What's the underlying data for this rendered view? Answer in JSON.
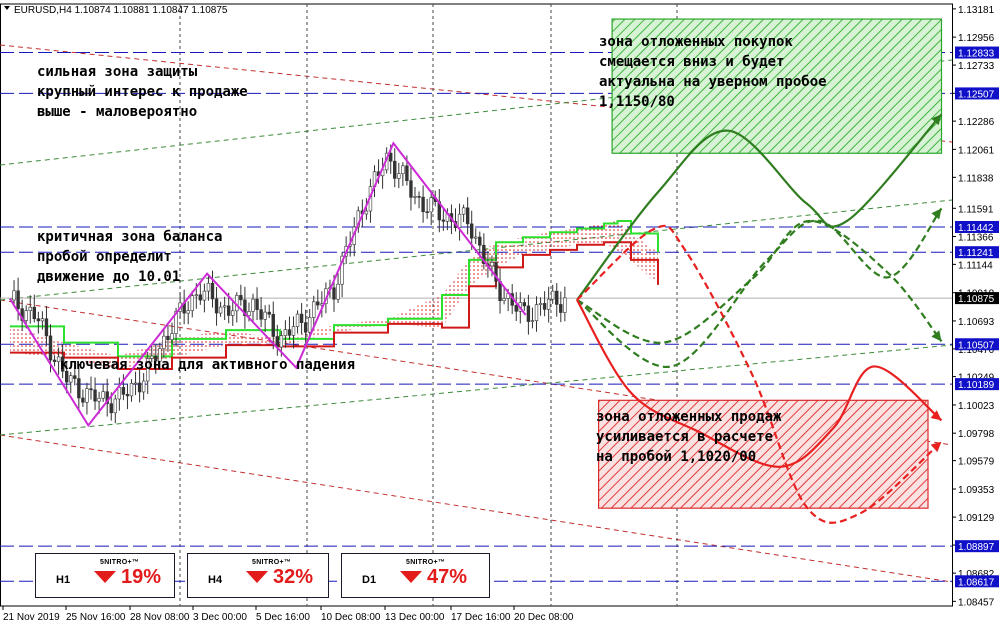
{
  "header": {
    "symbol_line": "EURUSD,H4  1.10874 1.10881 1.10847 1.10875"
  },
  "chart_data": {
    "type": "line",
    "symbol": "EURUSD",
    "timeframe": "H4",
    "ohlc": {
      "open": 1.10874,
      "high": 1.10881,
      "low": 1.10847,
      "close": 1.10875
    },
    "ylim": [
      1.0842,
      1.1322
    ],
    "price_axis_ticks": [
      "1.13181",
      "1.12956",
      "1.12733",
      "1.12508",
      "1.12286",
      "1.12061",
      "1.11838",
      "1.11591",
      "1.11366",
      "1.11144",
      "1.10918",
      "1.10693",
      "1.10470",
      "1.10249",
      "1.10023",
      "1.09798",
      "1.09579",
      "1.09353",
      "1.09129",
      "1.08906",
      "1.08682",
      "1.08457"
    ],
    "time_axis_labels": [
      "21 Nov 2019",
      "25 Nov 16:00",
      "28 Nov 08:00",
      "3 Dec 00:00",
      "5 Dec 16:00",
      "10 Dec 08:00",
      "13 Dec 00:00",
      "17 Dec 16:00",
      "20 Dec 08:00"
    ],
    "level_labels": [
      {
        "label": "1.12833",
        "value": 1.12833,
        "color": "#1010c8"
      },
      {
        "label": "1.12507",
        "value": 1.12507,
        "color": "#1010c8"
      },
      {
        "label": "1.11442",
        "value": 1.11442,
        "color": "#1010c8"
      },
      {
        "label": "1.11241",
        "value": 1.11241,
        "color": "#1010c8"
      },
      {
        "label": "1.10875",
        "value": 1.10875,
        "color": "#000000"
      },
      {
        "label": "1.10507",
        "value": 1.10507,
        "color": "#1010c8"
      },
      {
        "label": "1.10189",
        "value": 1.10189,
        "color": "#1010c8"
      },
      {
        "label": "1.08897",
        "value": 1.08897,
        "color": "#1010c8"
      },
      {
        "label": "1.08617",
        "value": 1.08617,
        "color": "#1010c8"
      }
    ],
    "current_price": 1.10875,
    "zigzag": [
      [
        0,
        1.1087
      ],
      [
        2.9,
        1.0986
      ],
      [
        7.3,
        1.1107
      ],
      [
        10.6,
        1.1032
      ],
      [
        14.2,
        1.1211
      ],
      [
        19.1,
        1.1074
      ]
    ],
    "price_path": [
      [
        0,
        1.1086
      ],
      [
        1,
        1.1072
      ],
      [
        2,
        1.1025
      ],
      [
        3,
        1.1008
      ],
      [
        4,
        1.1006
      ],
      [
        5,
        1.1026
      ],
      [
        6,
        1.1066
      ],
      [
        7,
        1.1094
      ],
      [
        8,
        1.1078
      ],
      [
        9,
        1.1083
      ],
      [
        10,
        1.1055
      ],
      [
        11,
        1.1072
      ],
      [
        12,
        1.1096
      ],
      [
        13,
        1.1158
      ],
      [
        14,
        1.1201
      ],
      [
        15,
        1.1168
      ],
      [
        16,
        1.1153
      ],
      [
        17,
        1.1148
      ],
      [
        18,
        1.1098
      ],
      [
        19,
        1.1074
      ],
      [
        20,
        1.1084
      ],
      [
        20.6,
        1.1088
      ]
    ],
    "cloud_top": [
      [
        0,
        1.1065
      ],
      [
        2,
        1.1052
      ],
      [
        4,
        1.1041
      ],
      [
        6,
        1.1055
      ],
      [
        8,
        1.1062
      ],
      [
        10,
        1.1055
      ],
      [
        12,
        1.1066
      ],
      [
        14,
        1.1071
      ],
      [
        16,
        1.109
      ],
      [
        17,
        1.1118
      ],
      [
        18,
        1.1132
      ],
      [
        19,
        1.1136
      ],
      [
        20,
        1.114
      ],
      [
        21,
        1.1143
      ],
      [
        22,
        1.1147
      ],
      [
        22.5,
        1.1149
      ],
      [
        23,
        1.1139
      ],
      [
        24,
        1.1124
      ]
    ],
    "cloud_bottom": [
      [
        0,
        1.1044
      ],
      [
        2,
        1.104
      ],
      [
        4,
        1.1031
      ],
      [
        6,
        1.104
      ],
      [
        8,
        1.105
      ],
      [
        10,
        1.1049
      ],
      [
        12,
        1.106
      ],
      [
        14,
        1.1067
      ],
      [
        16,
        1.1064
      ],
      [
        17,
        1.1097
      ],
      [
        18,
        1.1112
      ],
      [
        19,
        1.1122
      ],
      [
        20,
        1.1126
      ],
      [
        21,
        1.113
      ],
      [
        22,
        1.1132
      ],
      [
        23,
        1.1118
      ],
      [
        24,
        1.1098
      ]
    ],
    "forecast_paths": [
      {
        "color": "#2f7d1f",
        "dashed": false,
        "points": [
          [
            21,
            1.1086
          ],
          [
            24,
            1.1172
          ],
          [
            26.6,
            1.1221
          ],
          [
            29.5,
            1.1163
          ],
          [
            31,
            1.1149
          ],
          [
            34.5,
            1.1234
          ]
        ]
      },
      {
        "color": "#2f7d1f",
        "dashed": true,
        "points": [
          [
            21,
            1.1086
          ],
          [
            24.2,
            1.1052
          ],
          [
            27.5,
            1.1103
          ],
          [
            29.6,
            1.1149
          ],
          [
            32.5,
            1.1108
          ],
          [
            34.5,
            1.1053
          ]
        ]
      },
      {
        "color": "#2f7d1f",
        "dashed": true,
        "points": [
          [
            21,
            1.1086
          ],
          [
            24.5,
            1.1033
          ],
          [
            28,
            1.1117
          ],
          [
            30,
            1.1149
          ],
          [
            32.5,
            1.1104
          ],
          [
            34.5,
            1.1159
          ]
        ]
      },
      {
        "color": "#e82020",
        "dashed": true,
        "points": [
          [
            21,
            1.1086
          ],
          [
            23.8,
            1.1142
          ],
          [
            25,
            1.1126
          ],
          [
            27.5,
            1.1026
          ],
          [
            29.5,
            1.0921
          ],
          [
            31.5,
            1.0916
          ],
          [
            34.5,
            1.0973
          ]
        ]
      },
      {
        "color": "#e82020",
        "dashed": false,
        "points": [
          [
            21,
            1.1086
          ],
          [
            23,
            1.1012
          ],
          [
            25.5,
            1.0981
          ],
          [
            28.5,
            1.0953
          ],
          [
            30.5,
            1.0984
          ],
          [
            32,
            1.1033
          ],
          [
            34.5,
            1.099
          ]
        ]
      }
    ],
    "zones": [
      {
        "name": "buy_zone",
        "color": "#2aa62a",
        "x": [
          22.3,
          34.5
        ],
        "y": [
          1.1203,
          1.131
        ]
      },
      {
        "name": "sell_zone",
        "color": "#d92b2b",
        "x": [
          21.8,
          34.0
        ],
        "y": [
          1.092,
          1.1006
        ]
      }
    ],
    "annotations": [
      {
        "lines": [
          "сильная зона защиты",
          "крупный интерес к продаже",
          "выше - маловероятно"
        ]
      },
      {
        "lines": [
          "критичная зона баланса",
          "пробой определит",
          "движение до 10.01"
        ]
      },
      {
        "lines": [
          "ключевая зона для активного падения"
        ]
      },
      {
        "lines": [
          "зона отложенных покупок",
          "смещается вниз и будет",
          "актуальна на уверном пробое",
          "1,1150/80"
        ]
      },
      {
        "lines": [
          "зона отложенных продаж",
          "усиливается в расчете",
          "на пробой 1,1020/00"
        ]
      }
    ]
  },
  "badges": [
    {
      "timeframe": "H1",
      "brand": "5NITRO+™",
      "percent": "19%"
    },
    {
      "timeframe": "H4",
      "brand": "5NITRO+™",
      "percent": "32%"
    },
    {
      "timeframe": "D1",
      "brand": "5NITRO+™",
      "percent": "47%"
    }
  ]
}
